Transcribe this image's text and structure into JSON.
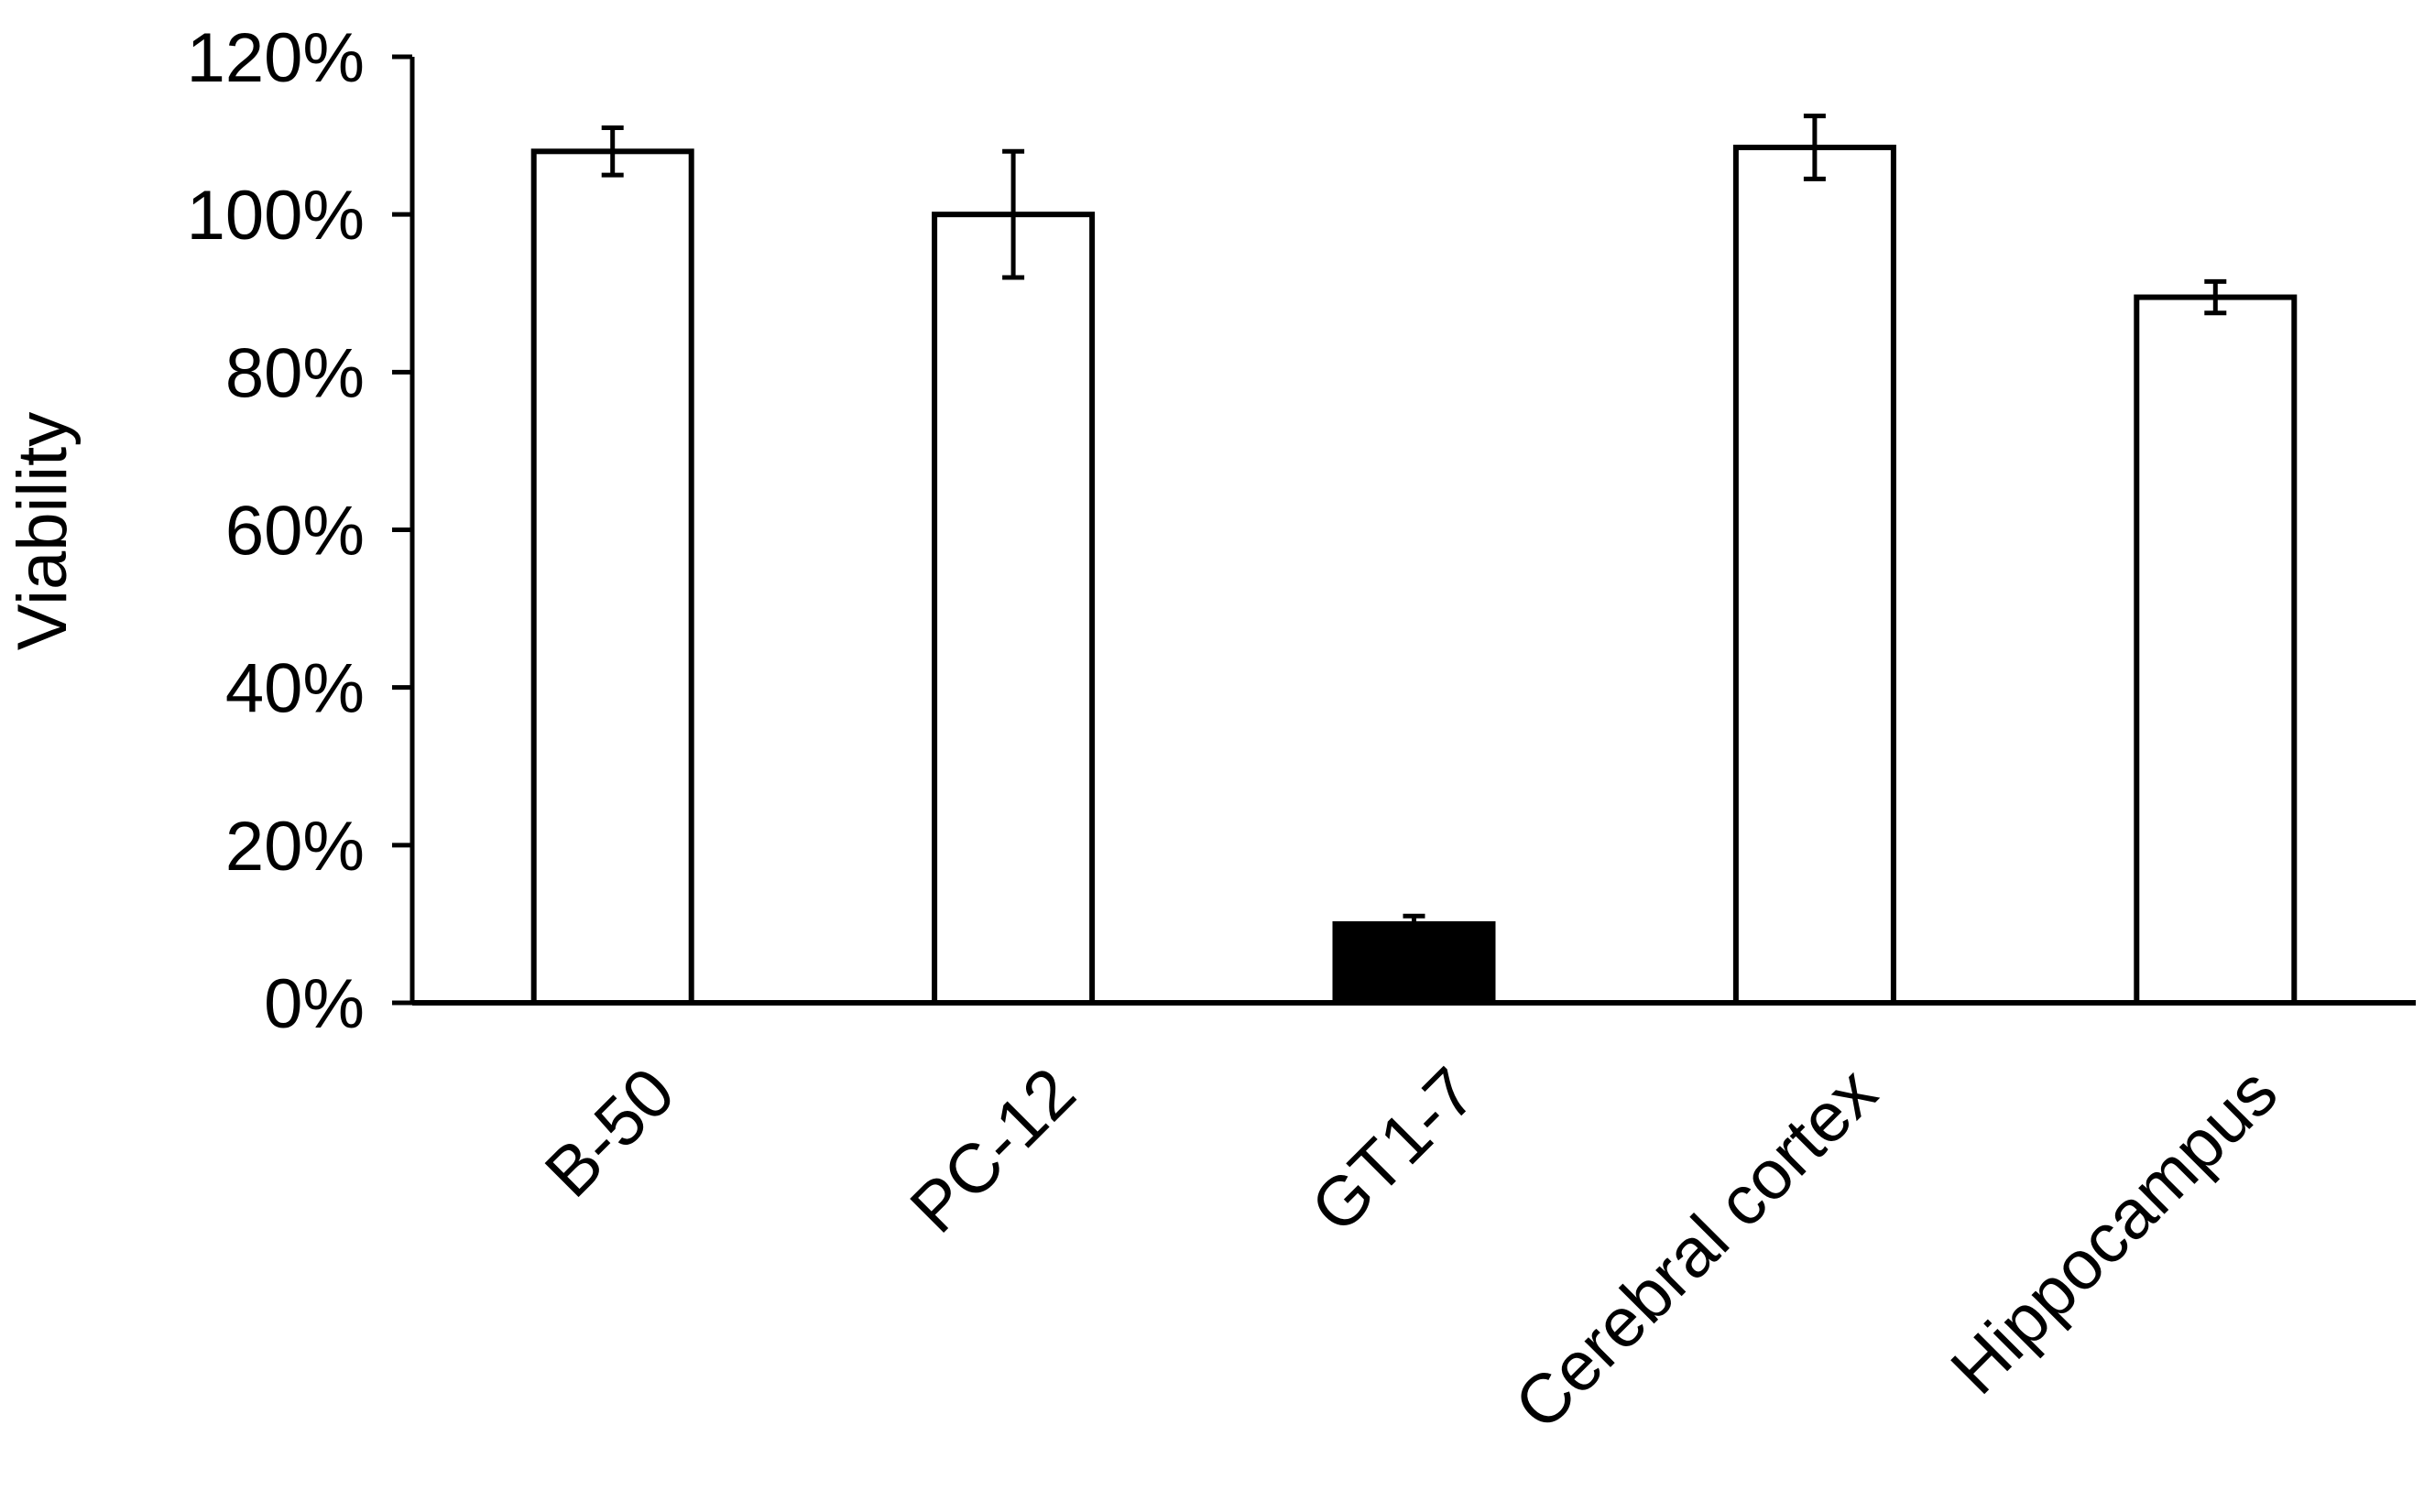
{
  "chart_data": {
    "type": "bar",
    "title": "",
    "xlabel": "",
    "ylabel": "Viability",
    "ylim": [
      0,
      120
    ],
    "y_ticks": [
      "0%",
      "20%",
      "40%",
      "60%",
      "80%",
      "100%",
      "120%"
    ],
    "y_tick_values": [
      0,
      20,
      40,
      60,
      80,
      100,
      120
    ],
    "categories": [
      "B-50",
      "PC-12",
      "GT1-7",
      "Cerebral cortex",
      "Hippocampus"
    ],
    "values": [
      108,
      100,
      10,
      108.5,
      89.5
    ],
    "errors": [
      3,
      8,
      1,
      4,
      2
    ],
    "bar_colors": [
      "#ffffff",
      "#ffffff",
      "#000000",
      "#ffffff",
      "#ffffff"
    ],
    "grid": false,
    "legend": "none"
  }
}
